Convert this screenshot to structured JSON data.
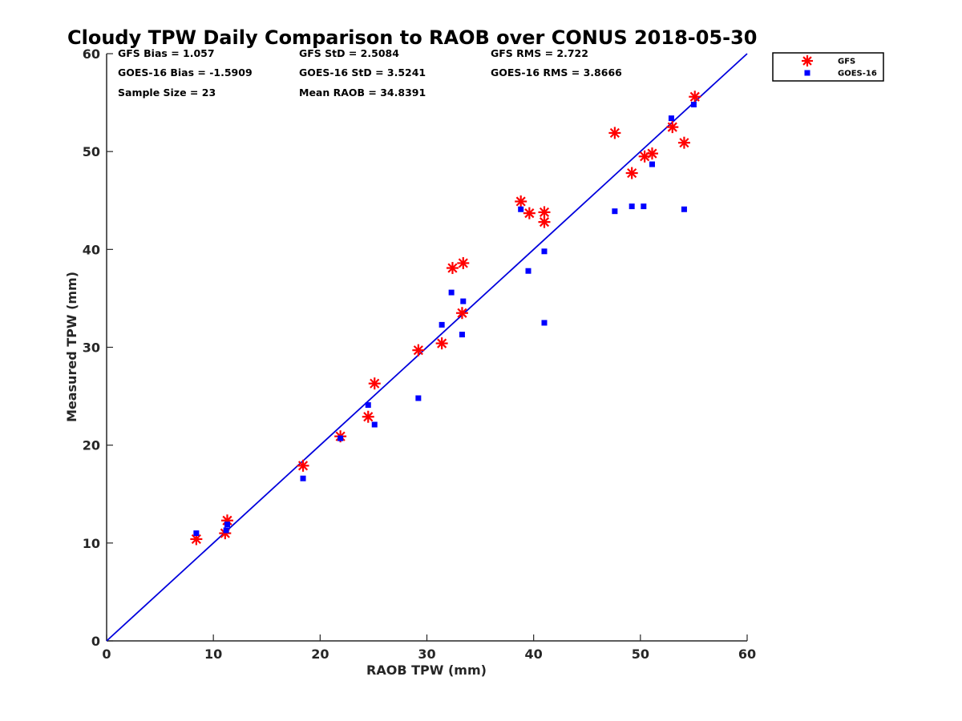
{
  "chart_data": {
    "type": "scatter",
    "title": "Cloudy TPW Daily Comparison to RAOB over CONUS 2018-05-30",
    "xlabel": "RAOB TPW (mm)",
    "ylabel": "Measured TPW (mm)",
    "xlim": [
      0,
      60
    ],
    "ylim": [
      0,
      60
    ],
    "xticks": [
      0,
      10,
      20,
      30,
      40,
      50,
      60
    ],
    "yticks": [
      0,
      10,
      20,
      30,
      40,
      50,
      60
    ],
    "grid": false,
    "legend_position": "outside-top-right",
    "stats": {
      "gfs_bias": "GFS Bias = 1.057",
      "goes_bias": "GOES-16 Bias = -1.5909",
      "sample_size": "Sample Size = 23",
      "gfs_std": "GFS StD = 2.5084",
      "goes_std": "GOES-16 StD = 3.5241",
      "mean_raob": "Mean RAOB = 34.8391",
      "gfs_rms": "GFS RMS = 2.722",
      "goes_rms": "GOES-16 RMS = 3.8666"
    },
    "reference_line": {
      "x": [
        0,
        60
      ],
      "y": [
        0,
        60
      ],
      "color": "#0000dd"
    },
    "series": [
      {
        "name": "GFS",
        "marker": "asterisk",
        "color": "#ff0000",
        "points": [
          [
            8.4,
            10.4
          ],
          [
            11.1,
            11.0
          ],
          [
            11.3,
            12.3
          ],
          [
            18.4,
            17.9
          ],
          [
            21.9,
            20.9
          ],
          [
            24.5,
            22.9
          ],
          [
            25.1,
            26.3
          ],
          [
            29.2,
            29.7
          ],
          [
            31.4,
            30.4
          ],
          [
            32.4,
            38.1
          ],
          [
            33.3,
            33.5
          ],
          [
            33.4,
            38.6
          ],
          [
            38.8,
            44.9
          ],
          [
            39.6,
            43.7
          ],
          [
            41.0,
            43.8
          ],
          [
            41.0,
            42.8
          ],
          [
            47.6,
            51.9
          ],
          [
            49.2,
            47.8
          ],
          [
            50.4,
            49.5
          ],
          [
            51.1,
            49.8
          ],
          [
            53.0,
            52.5
          ],
          [
            54.1,
            50.9
          ],
          [
            55.1,
            55.6
          ]
        ]
      },
      {
        "name": "GOES-16",
        "marker": "square",
        "color": "#0000ff",
        "points": [
          [
            8.4,
            11.0
          ],
          [
            11.2,
            11.3
          ],
          [
            11.3,
            11.9
          ],
          [
            18.4,
            16.6
          ],
          [
            21.9,
            20.7
          ],
          [
            24.5,
            24.1
          ],
          [
            25.1,
            22.1
          ],
          [
            29.2,
            24.8
          ],
          [
            31.4,
            32.3
          ],
          [
            32.3,
            35.6
          ],
          [
            33.3,
            31.3
          ],
          [
            33.4,
            34.7
          ],
          [
            38.8,
            44.1
          ],
          [
            39.5,
            37.8
          ],
          [
            41.0,
            39.8
          ],
          [
            41.0,
            32.5
          ],
          [
            47.6,
            43.9
          ],
          [
            49.2,
            44.4
          ],
          [
            50.3,
            44.4
          ],
          [
            51.1,
            48.7
          ],
          [
            52.9,
            53.4
          ],
          [
            54.1,
            44.1
          ],
          [
            55.0,
            54.8
          ]
        ]
      }
    ]
  }
}
